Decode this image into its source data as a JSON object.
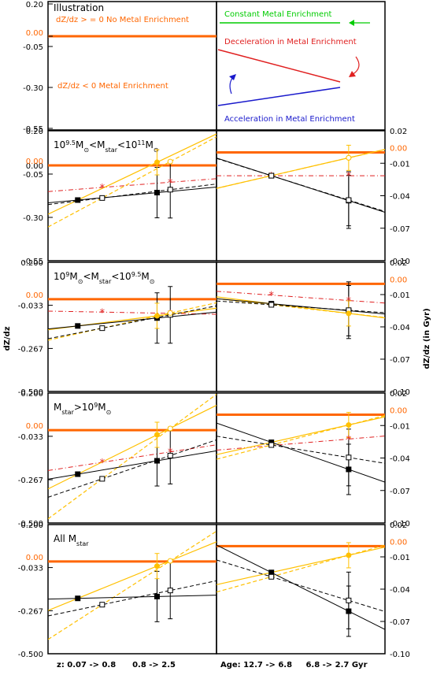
{
  "labels": {
    "left_axis": "dZ/dz",
    "right_axis": "dZ/dz (in Gyr)",
    "bottom_left": "z: 0.07 -> 0.8      0.8 -> 2.5",
    "bottom_right": "Age: 12.7 -> 6.8     6.8 -> 2.7 Gyr",
    "zero_label": "0.00"
  },
  "illustration": {
    "title": "Illustration",
    "yticks": [
      "0.20",
      "0.00",
      "-0.05",
      "-0.30",
      "-0.55"
    ],
    "note_positive": "dZ/dz > = 0   No Metal Enrichment",
    "note_negative": "dZ/dz < 0        Metal Enrichment",
    "constant": "Constant Metal Enrichment",
    "deceleration": "Deceleration in Metal Enrichment",
    "acceleration": "Acceleration in Metal Enrichment"
  },
  "colors": {
    "orange": "#ff6600",
    "gold": "#ffc000",
    "black": "#000000",
    "red": "#e02020",
    "green": "#00cc00",
    "blue": "#1a1acc"
  },
  "chart_data": [
    {
      "type": "scatter",
      "panel": "Mstar bin 10^9.5 – 10^11 Msun",
      "title_plain": "10^9.5 Msun < Mstar < 10^11 Msun",
      "left": {
        "yticks": [
          "0.20",
          "0.00",
          "-0.05",
          "-0.30",
          "-0.55"
        ],
        "ylim": [
          -0.55,
          0.2
        ],
        "filled": [
          [
            0.45,
            -0.2
          ],
          [
            1.65,
            -0.157
          ]
        ],
        "open": [
          [
            0.82,
            -0.188
          ],
          [
            1.85,
            -0.14
          ]
        ],
        "gold": [
          [
            1.65,
            0.018
          ],
          [
            1.85,
            0.022
          ]
        ],
        "red": [
          [
            0.82,
            -0.127
          ],
          [
            1.85,
            -0.097
          ]
        ],
        "gold_err": [
          0.065,
          0.045
        ]
      },
      "right": {
        "yticks": [
          "0.02",
          "-0.01",
          "-0.04",
          "-0.07",
          "-0.10"
        ],
        "ylim": [
          -0.1,
          0.02
        ],
        "filled": [
          [
            9.75,
            -0.0215
          ],
          [
            4.75,
            -0.0445
          ]
        ],
        "open": [
          [
            9.75,
            -0.0215
          ],
          [
            4.75,
            -0.044
          ]
        ],
        "gold": [
          [
            4.75,
            -0.005
          ],
          [
            4.75,
            -0.005
          ]
        ],
        "red": [
          [
            9.75,
            -0.0215
          ],
          [
            4.75,
            -0.0215
          ]
        ]
      }
    },
    {
      "type": "scatter",
      "panel": "Mstar bin 10^9 – 10^9.5 Msun",
      "title_plain": "10^9 Msun < Mstar < 10^9.5 Msun",
      "left": {
        "yticks": [
          "0.200",
          "-0.033",
          "-0.267",
          "-0.500"
        ],
        "ylim": [
          -0.5,
          0.2
        ],
        "filled": [
          [
            0.45,
            -0.145
          ],
          [
            1.65,
            -0.102
          ]
        ],
        "open": [
          [
            0.82,
            -0.157
          ],
          [
            1.85,
            -0.085
          ]
        ],
        "gold": [
          [
            1.65,
            -0.09
          ],
          [
            1.85,
            -0.075
          ]
        ],
        "red": [
          [
            0.82,
            -0.07
          ],
          [
            1.85,
            -0.077
          ]
        ]
      },
      "right": {
        "yticks": [
          "0.02",
          "-0.01",
          "-0.04",
          "-0.07",
          "-0.10"
        ],
        "ylim": [
          -0.1,
          0.02
        ],
        "filled": [
          [
            9.75,
            -0.0185
          ],
          [
            4.75,
            -0.025
          ]
        ],
        "open": [
          [
            9.75,
            -0.0195
          ],
          [
            4.75,
            -0.0245
          ]
        ],
        "gold": [
          [
            4.75,
            -0.0275
          ]
        ],
        "red": [
          [
            9.75,
            -0.0105
          ],
          [
            4.75,
            -0.0155
          ]
        ]
      }
    },
    {
      "type": "scatter",
      "panel": "Mstar > 10^9 Msun",
      "title_plain": "Mstar > 10^9 Msun",
      "left": {
        "yticks": [
          "0.200",
          "-0.033",
          "-0.267",
          "-0.500"
        ],
        "ylim": [
          -0.5,
          0.2
        ],
        "filled": [
          [
            0.45,
            -0.237
          ],
          [
            1.65,
            -0.165
          ]
        ],
        "open": [
          [
            0.82,
            -0.262
          ],
          [
            1.85,
            -0.137
          ]
        ],
        "gold": [
          [
            1.65,
            -0.025
          ],
          [
            1.85,
            0.009
          ]
        ],
        "red": [
          [
            0.82,
            -0.173
          ],
          [
            1.85,
            -0.117
          ]
        ]
      },
      "right": {
        "yticks": [
          "0.02",
          "-0.01",
          "-0.04",
          "-0.07",
          "-0.10"
        ],
        "ylim": [
          -0.1,
          0.02
        ],
        "filled": [
          [
            9.75,
            -0.0255
          ],
          [
            4.75,
            -0.0505
          ]
        ],
        "open": [
          [
            9.75,
            -0.028
          ],
          [
            4.75,
            -0.0395
          ]
        ],
        "gold": [
          [
            4.75,
            -0.0095
          ]
        ],
        "red": [
          [
            9.75,
            -0.0285
          ],
          [
            4.75,
            -0.0225
          ]
        ]
      }
    },
    {
      "type": "scatter",
      "panel": "All Mstar",
      "title_plain": "All Mstar",
      "left": {
        "yticks": [
          "0.200",
          "-0.033",
          "-0.267",
          "-0.500"
        ],
        "ylim": [
          -0.5,
          0.2
        ],
        "filled": [
          [
            0.45,
            -0.2
          ],
          [
            1.65,
            -0.19
          ]
        ],
        "open": [
          [
            0.82,
            -0.234
          ],
          [
            1.85,
            -0.157
          ]
        ],
        "gold": [
          [
            1.65,
            -0.025
          ],
          [
            1.85,
            0.003
          ]
        ]
      },
      "right": {
        "yticks": [
          "0.02",
          "-0.01",
          "-0.04",
          "-0.07",
          "-0.10"
        ],
        "ylim": [
          -0.1,
          0.02
        ],
        "filled": [
          [
            9.75,
            -0.0245
          ],
          [
            4.75,
            -0.0605
          ]
        ],
        "open": [
          [
            9.75,
            -0.0285
          ],
          [
            4.75,
            -0.0505
          ]
        ],
        "gold": [
          [
            4.75,
            -0.0085
          ]
        ]
      }
    }
  ]
}
